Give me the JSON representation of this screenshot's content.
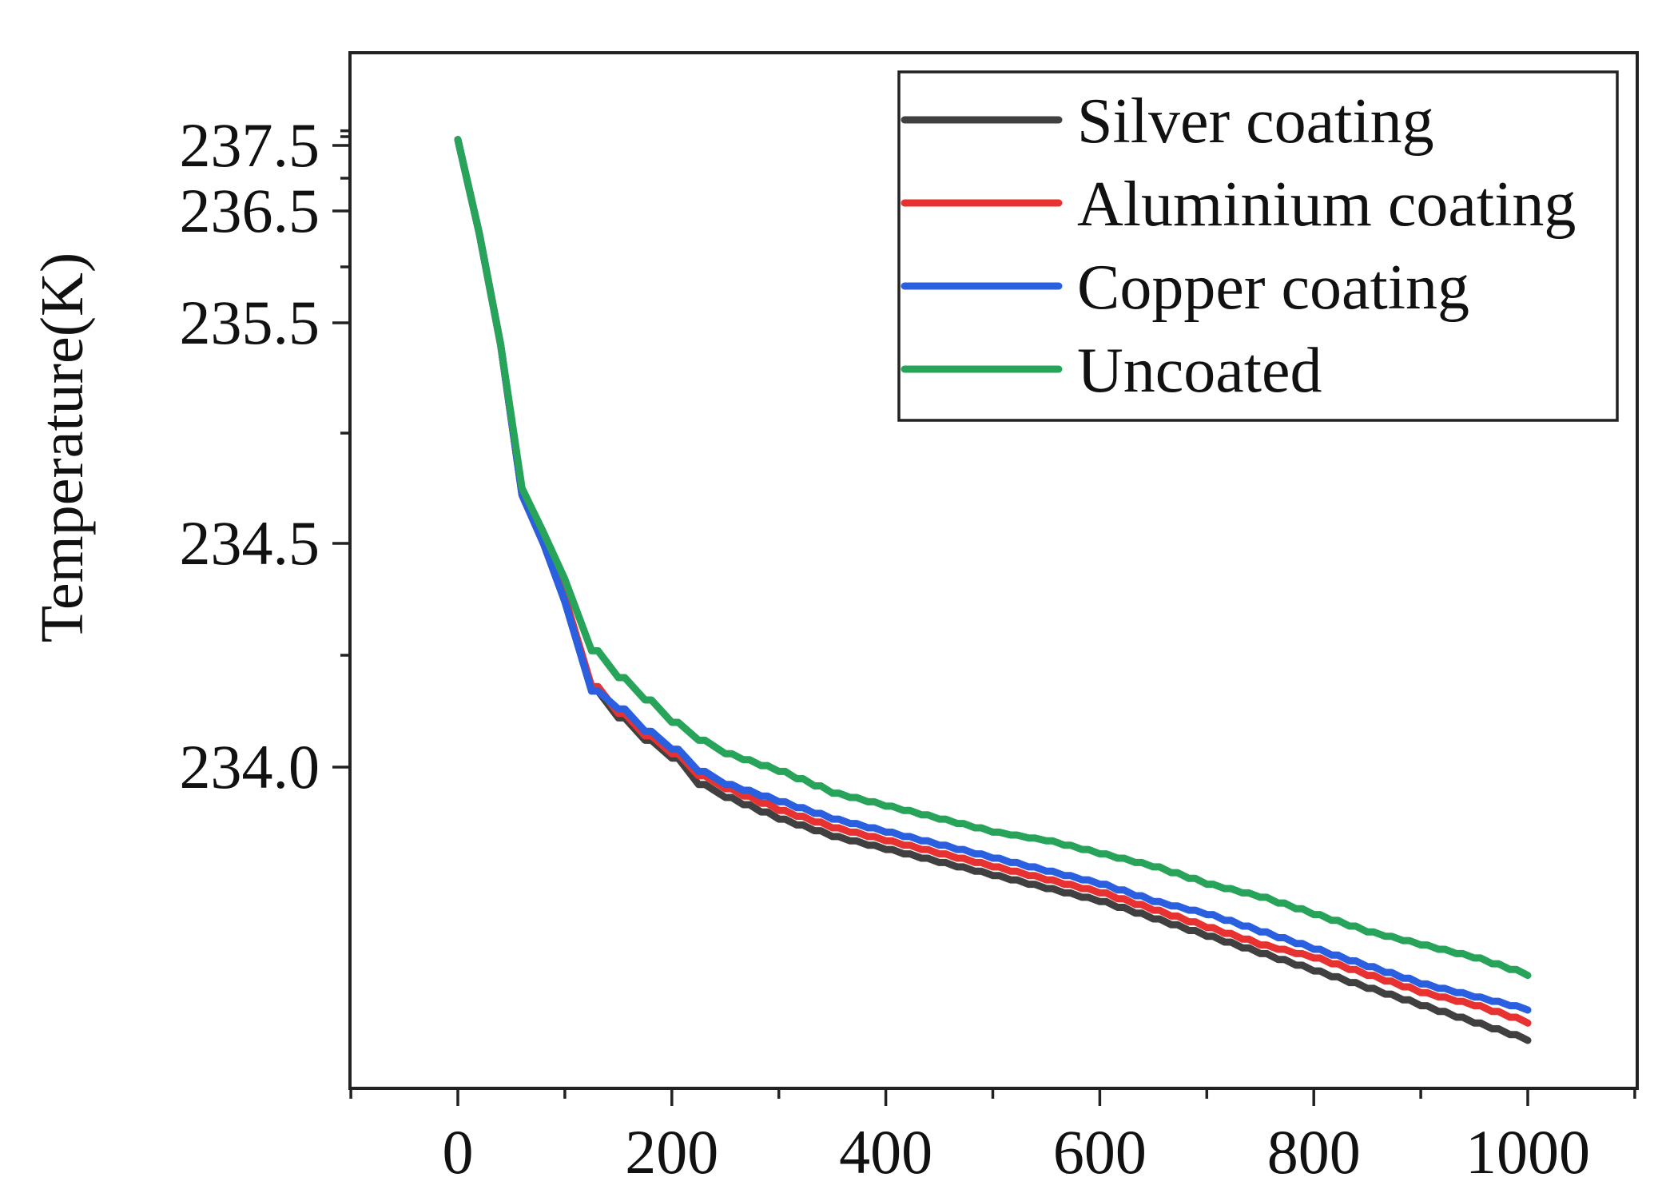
{
  "chart_data": {
    "type": "line",
    "title": "",
    "xlabel": "",
    "ylabel": "Temperature(K)",
    "xlim": [
      -100,
      1100
    ],
    "x_ticks": [
      0,
      200,
      400,
      600,
      800,
      1000
    ],
    "x_tick_labels": [
      "0",
      "200",
      "400",
      "600",
      "800",
      "1000"
    ],
    "y_ticks": [
      234.0,
      234.5,
      235.5,
      236.5,
      237.5
    ],
    "y_tick_labels": [
      "234.0",
      "234.5",
      "235.5",
      "236.5",
      "237.5"
    ],
    "y_scale_note": "non-linear (broken) temperature axis",
    "legend_position": "top-right",
    "x": [
      0,
      20,
      40,
      60,
      80,
      100,
      125,
      150,
      175,
      200,
      225,
      250,
      300,
      350,
      400,
      450,
      500,
      550,
      600,
      650,
      700,
      750,
      800,
      850,
      900,
      950,
      1000
    ],
    "series": [
      {
        "name": "Silver coating",
        "color": "#404040",
        "values": [
          237.6,
          236.3,
          235.4,
          234.72,
          234.5,
          234.37,
          234.17,
          234.11,
          234.06,
          234.02,
          233.96,
          233.93,
          233.88,
          233.84,
          233.81,
          233.78,
          233.75,
          233.72,
          233.69,
          233.65,
          233.61,
          233.57,
          233.53,
          233.49,
          233.45,
          233.41,
          233.37
        ]
      },
      {
        "name": "Aluminium coating",
        "color": "#e83232",
        "values": [
          237.6,
          236.3,
          235.4,
          234.72,
          234.5,
          234.38,
          234.18,
          234.12,
          234.07,
          234.03,
          233.98,
          233.95,
          233.9,
          233.86,
          233.83,
          233.8,
          233.77,
          233.74,
          233.71,
          233.67,
          233.63,
          233.59,
          233.56,
          233.52,
          233.48,
          233.45,
          233.41
        ]
      },
      {
        "name": "Copper coating",
        "color": "#2a5fe0",
        "values": [
          237.6,
          236.3,
          235.4,
          234.72,
          234.5,
          234.37,
          234.17,
          234.13,
          234.08,
          234.04,
          233.99,
          233.96,
          233.92,
          233.88,
          233.85,
          233.82,
          233.79,
          233.76,
          233.73,
          233.69,
          233.66,
          233.62,
          233.58,
          233.54,
          233.5,
          233.47,
          233.44
        ]
      },
      {
        "name": "Uncoated",
        "color": "#27a35a",
        "values": [
          237.6,
          236.3,
          235.4,
          234.75,
          234.55,
          234.42,
          234.26,
          234.2,
          234.15,
          234.1,
          234.06,
          234.03,
          233.99,
          233.94,
          233.91,
          233.88,
          233.85,
          233.83,
          233.8,
          233.77,
          233.73,
          233.7,
          233.66,
          233.62,
          233.59,
          233.56,
          233.52
        ]
      }
    ]
  }
}
